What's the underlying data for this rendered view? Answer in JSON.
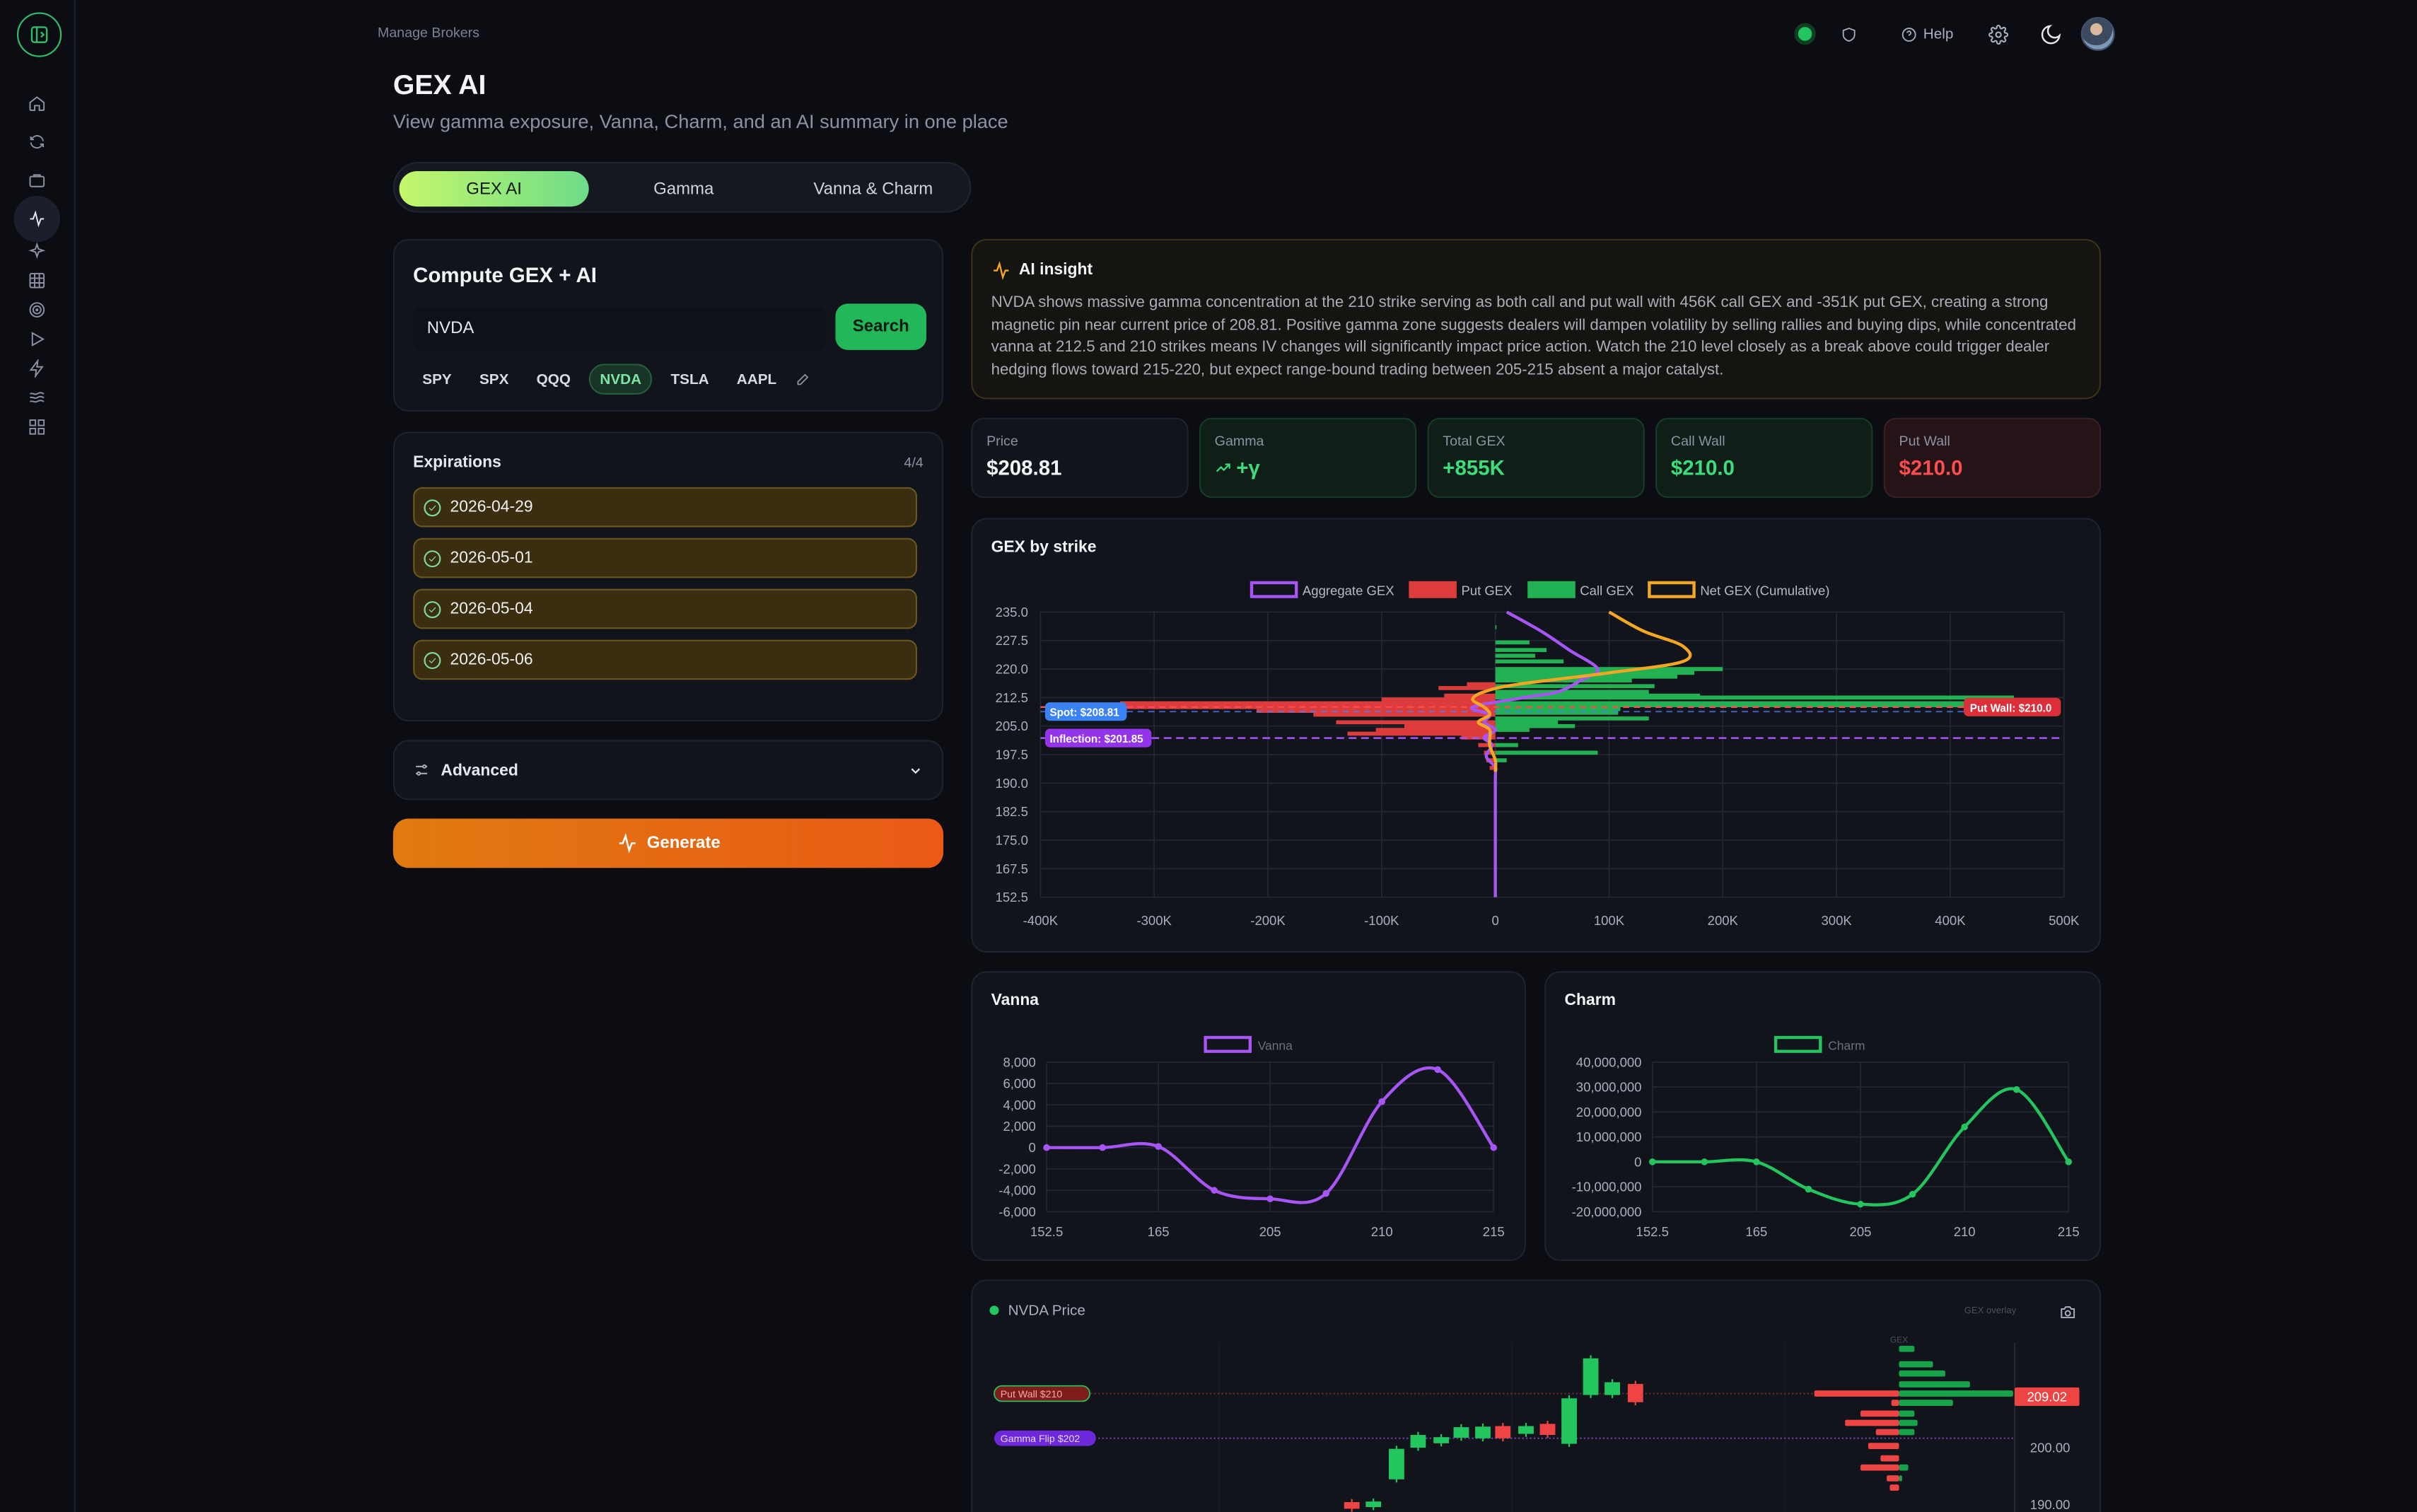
{
  "header": {
    "breadcrumb": "Manage Brokers",
    "help_label": "Help"
  },
  "page": {
    "title": "GEX AI",
    "subtitle": "View gamma exposure, Vanna, Charm, and an AI summary in one place"
  },
  "tabs": [
    {
      "label": "GEX AI",
      "active": true
    },
    {
      "label": "Gamma"
    },
    {
      "label": "Vanna & Charm"
    }
  ],
  "compute": {
    "title": "Compute GEX + AI",
    "ticker_value": "NVDA",
    "search_label": "Search",
    "quick_tickers": [
      "SPY",
      "SPX",
      "QQQ",
      "NVDA",
      "TSLA",
      "AAPL"
    ],
    "active_ticker": "NVDA"
  },
  "expirations": {
    "title": "Expirations",
    "count": "4/4",
    "items": [
      "2026-04-29",
      "2026-05-01",
      "2026-05-04",
      "2026-05-06"
    ]
  },
  "advanced_label": "Advanced",
  "generate_label": "Generate",
  "insight": {
    "title": "AI insight",
    "text": "NVDA shows massive gamma concentration at the 210 strike serving as both call and put wall with 456K call GEX and -351K put GEX, creating a strong magnetic pin near current price of 208.81. Positive gamma zone suggests dealers will dampen volatility by selling rallies and buying dips, while concentrated vanna at 212.5 and 210 strikes means IV changes will significantly impact price action. Watch the 210 level closely as a break above could trigger dealer hedging flows toward 215-220, but expect range-bound trading between 205-215 absent a major catalyst."
  },
  "stats": [
    {
      "label": "Price",
      "value": "$208.81",
      "color": "#f2f4f8"
    },
    {
      "label": "Gamma",
      "value": "+γ",
      "color": "#3ddc7c"
    },
    {
      "label": "Total GEX",
      "value": "+855K",
      "color": "#3ddc7c"
    },
    {
      "label": "Call Wall",
      "value": "$210.0",
      "color": "#3ddc7c"
    },
    {
      "label": "Put Wall",
      "value": "$210.0",
      "color": "#ff4d4f"
    }
  ],
  "colors": {
    "aggregate": "#a855f7",
    "put": "#dc3c3c",
    "call": "#22b153",
    "net": "#f5a623",
    "vanna": "#a855f7",
    "charm": "#22c55e"
  },
  "chart_data": [
    {
      "type": "bar",
      "title": "GEX by strike",
      "orientation": "horizontal",
      "legend": [
        "Aggregate GEX",
        "Put GEX",
        "Call GEX",
        "Net GEX (Cumulative)"
      ],
      "legend_position": "top",
      "xlim": [
        -400000,
        500000
      ],
      "x_ticks": [
        "-400K",
        "-300K",
        "-200K",
        "-100K",
        "0",
        "100K",
        "200K",
        "300K",
        "400K",
        "500K"
      ],
      "ylim": [
        152.5,
        235
      ],
      "y_ticks": [
        "235.0",
        "227.5",
        "220.0",
        "212.5",
        "205.0",
        "197.5",
        "190.0",
        "182.5",
        "175.0",
        "167.5",
        "152.5"
      ],
      "call_gex": [
        [
          231,
          1000
        ],
        [
          227,
          30000
        ],
        [
          225,
          45000
        ],
        [
          223.5,
          35000
        ],
        [
          222,
          60000
        ],
        [
          220,
          200000
        ],
        [
          219,
          175000
        ],
        [
          218,
          160000
        ],
        [
          217,
          120000
        ],
        [
          215.5,
          140000
        ],
        [
          214,
          135000
        ],
        [
          213,
          180000
        ],
        [
          212.5,
          456000
        ],
        [
          211,
          440000
        ],
        [
          210.5,
          456000
        ],
        [
          209.5,
          110000
        ],
        [
          208.5,
          108000
        ],
        [
          207,
          135000
        ],
        [
          206,
          55000
        ],
        [
          205,
          70000
        ],
        [
          204,
          30000
        ],
        [
          200,
          20000
        ],
        [
          198,
          90000
        ],
        [
          196,
          10000
        ]
      ],
      "put_gex": [
        [
          216,
          -25000
        ],
        [
          215,
          -50000
        ],
        [
          213,
          -45000
        ],
        [
          212,
          -100000
        ],
        [
          211,
          -330000
        ],
        [
          210,
          -351000
        ],
        [
          209,
          -210000
        ],
        [
          208,
          -160000
        ],
        [
          206,
          -140000
        ],
        [
          205,
          -80000
        ],
        [
          204,
          -105000
        ],
        [
          203,
          -130000
        ],
        [
          202,
          -30000
        ],
        [
          200,
          -15000
        ],
        [
          198,
          -10000
        ],
        [
          196,
          -8000
        ],
        [
          194,
          -5000
        ]
      ],
      "aggregate": [
        [
          235,
          10000
        ],
        [
          230,
          40000
        ],
        [
          225,
          65000
        ],
        [
          220,
          90000
        ],
        [
          217,
          75000
        ],
        [
          214,
          55000
        ],
        [
          212.5,
          25000
        ],
        [
          210,
          -20000
        ],
        [
          208,
          -5000
        ],
        [
          206,
          -10000
        ],
        [
          204,
          0
        ],
        [
          202,
          -10000
        ],
        [
          200,
          -3000
        ],
        [
          197,
          -8000
        ],
        [
          194,
          0
        ],
        [
          190,
          0
        ],
        [
          152.5,
          0
        ]
      ],
      "net_cumulative": [
        [
          235,
          100000
        ],
        [
          230,
          130000
        ],
        [
          226,
          165000
        ],
        [
          222,
          165000
        ],
        [
          219,
          100000
        ],
        [
          216,
          20000
        ],
        [
          214,
          -10000
        ],
        [
          212,
          -20000
        ],
        [
          210,
          -10000
        ],
        [
          208,
          -5000
        ],
        [
          206,
          -15000
        ],
        [
          204,
          -5000
        ],
        [
          200,
          -5000
        ],
        [
          196,
          0
        ],
        [
          193,
          0
        ]
      ],
      "annotations": [
        "Spot: $208.81",
        "Put Wall: $210.0",
        "Inflection: $201.85"
      ],
      "spot": 208.81,
      "put_wall": 210.0,
      "inflection": 201.85
    },
    {
      "type": "line",
      "title": "Vanna",
      "legend": [
        "Vanna"
      ],
      "x": [
        "152.5",
        "",
        "165",
        "",
        "205",
        "",
        "210",
        "",
        "215"
      ],
      "x_tick_labels": [
        "152.5",
        "165",
        "205",
        "210",
        "215"
      ],
      "values": [
        0,
        0,
        100,
        -4000,
        -4800,
        -4300,
        4300,
        7300,
        0
      ],
      "ylim": [
        -6000,
        8000
      ],
      "y_ticks": [
        "8,000",
        "6,000",
        "4,000",
        "2,000",
        "0",
        "-2,000",
        "-4,000",
        "-6,000"
      ]
    },
    {
      "type": "line",
      "title": "Charm",
      "legend": [
        "Charm"
      ],
      "x": [
        "152.5",
        "",
        "165",
        "",
        "205",
        "",
        "210",
        "",
        "215"
      ],
      "x_tick_labels": [
        "152.5",
        "165",
        "205",
        "210",
        "215"
      ],
      "values": [
        0,
        0,
        0,
        -11000000,
        -17000000,
        -13000000,
        14000000,
        29000000,
        0
      ],
      "ylim": [
        -20000000,
        40000000
      ],
      "y_ticks": [
        "40,000,000",
        "30,000,000",
        "20,000,000",
        "10,000,000",
        "0",
        "-10,000,000",
        "-20,000,000"
      ]
    },
    {
      "type": "candlestick",
      "title": "NVDA Price",
      "overlay_label": "GEX overlay",
      "gex_axis_label": "GEX",
      "price_labels": [
        "209.02",
        "200.00",
        "190.00"
      ],
      "last_price": 209.02,
      "lines": [
        {
          "label": "Put Wall $210",
          "value": 210
        },
        {
          "label": "Gamma Flip $202",
          "value": 202
        }
      ]
    }
  ]
}
